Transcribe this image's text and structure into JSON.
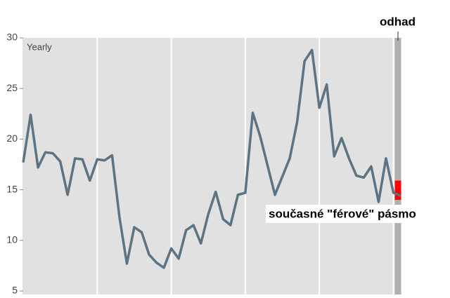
{
  "chart_data": {
    "type": "line",
    "label": "Yearly",
    "annotations": {
      "estimate": "odhad",
      "band": "současné \"férové\" pásmo"
    },
    "values": [
      17.7,
      22.4,
      17.2,
      18.7,
      18.6,
      17.8,
      14.5,
      18.1,
      18.0,
      15.9,
      18.0,
      17.9,
      18.4,
      12.3,
      7.7,
      11.3,
      10.8,
      8.6,
      7.8,
      7.3,
      9.2,
      8.2,
      11.0,
      11.5,
      9.7,
      12.6,
      14.8,
      12.1,
      11.5,
      14.5,
      14.7,
      22.6,
      20.3,
      17.4,
      14.5,
      16.3,
      18.1,
      21.7,
      27.7,
      28.8,
      23.1,
      25.4,
      18.3,
      20.1,
      18.1,
      16.4,
      16.2,
      17.3,
      13.8,
      18.1,
      14.7,
      14.4
    ],
    "color": "#5b7383",
    "band_range": [
      14.0,
      15.9
    ],
    "band_color": "#ff0000",
    "ylim": [
      5,
      30
    ],
    "yticks": [
      5,
      10,
      15,
      20,
      25,
      30
    ],
    "grid": true
  }
}
